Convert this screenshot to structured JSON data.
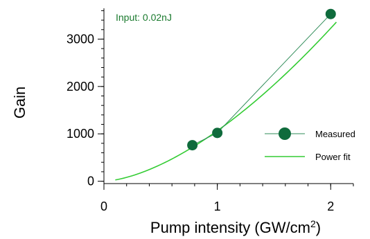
{
  "chart_data": {
    "type": "line",
    "xlabel": "Pump intensity (GW/cm",
    "xlabel_sup": "2",
    "xlabel_close": ")",
    "ylabel": "Gain",
    "annotation": "Input: 0.02nJ",
    "xlim": [
      0,
      2.2
    ],
    "ylim": [
      -50,
      3650
    ],
    "x_ticks": [
      0,
      1,
      2
    ],
    "x_tick_labels": [
      "0",
      "1",
      "2"
    ],
    "x_minor_step": 0.2,
    "y_ticks": [
      0,
      1000,
      2000,
      3000
    ],
    "y_tick_labels": [
      "0",
      "1000",
      "2000",
      "3000"
    ],
    "y_minor_step": 200,
    "grid": false,
    "legend_position": "bottom-right",
    "series": [
      {
        "name": "Measured",
        "style": "line-with-markers",
        "color": "#0f6b3c",
        "line_color": "#2e8b57",
        "x": [
          0.78,
          1.0,
          2.0
        ],
        "y": [
          760,
          1020,
          3530
        ]
      },
      {
        "name": "Power fit",
        "style": "line",
        "color": "#33cc33",
        "exponent": 1.6,
        "coefficient": 1065,
        "x_range": [
          0.1,
          2.05
        ]
      }
    ]
  }
}
